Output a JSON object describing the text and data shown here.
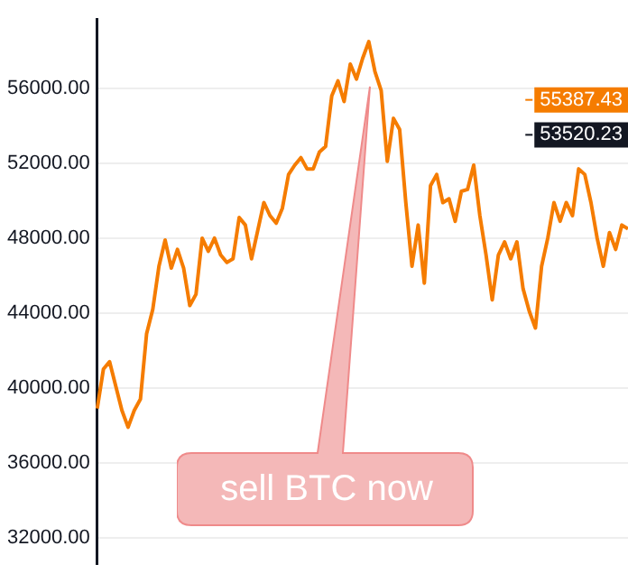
{
  "chart_data": {
    "type": "line",
    "categories": [
      null,
      null,
      null,
      null,
      null,
      null,
      null,
      null,
      null,
      null,
      null,
      null,
      null,
      null,
      null,
      null,
      null,
      null,
      null,
      null,
      null,
      null,
      null,
      null,
      null,
      null,
      null,
      null,
      null,
      null,
      null,
      null,
      null,
      null,
      null,
      null,
      null,
      null,
      null,
      null,
      null,
      null,
      null,
      null,
      null,
      null,
      null,
      null,
      null,
      null,
      null,
      null,
      null,
      null,
      null,
      null,
      null,
      null,
      null,
      null,
      null,
      null,
      null,
      null,
      null,
      null,
      null,
      null,
      null,
      null,
      null,
      null,
      null,
      null,
      null,
      null,
      null,
      null,
      null,
      null,
      null,
      null,
      null,
      null,
      null,
      null,
      null
    ],
    "series": [
      {
        "color": "#f57c00",
        "values": [
          38900,
          41000,
          41400,
          40100,
          38800,
          37900,
          38800,
          39400,
          42900,
          44200,
          46500,
          47900,
          46400,
          47400,
          46400,
          44400,
          45000,
          48000,
          47300,
          48000,
          47100,
          46700,
          46900,
          49100,
          48700,
          46900,
          48400,
          49900,
          49200,
          48800,
          49600,
          51400,
          51900,
          52300,
          51700,
          51700,
          52600,
          52900,
          55600,
          56400,
          55300,
          57300,
          56500,
          57600,
          58500,
          56900,
          55900,
          52100,
          54400,
          53800,
          49900,
          46500,
          48700,
          45600,
          50800,
          51400,
          49900,
          50100,
          48900,
          50500,
          50600,
          51900,
          49200,
          47100,
          44700,
          47100,
          47800,
          46900,
          47800,
          45300,
          44100,
          43200,
          46500,
          48000,
          49900,
          48900,
          49900,
          49200,
          51700,
          51400,
          49900,
          48000,
          46500,
          48300,
          47400,
          48700,
          48500
        ]
      }
    ],
    "ylim": [
      30600,
      59700
    ],
    "yticks": [
      {
        "value": 32000,
        "label": "32000.00"
      },
      {
        "value": 36000,
        "label": "36000.00"
      },
      {
        "value": 40000,
        "label": "40000.00"
      },
      {
        "value": 44000,
        "label": "44000.00"
      },
      {
        "value": 48000,
        "label": "48000.00"
      },
      {
        "value": 52000,
        "label": "52000.00"
      },
      {
        "value": 56000,
        "label": "56000.00"
      }
    ],
    "ref_lines": [
      {
        "axis": "y",
        "value": 55387.43,
        "label": "55387.43",
        "color": "#f57c00"
      },
      {
        "axis": "y",
        "value": 53520.23,
        "label": "53520.23",
        "color": "#131722"
      }
    ],
    "annotations": [
      "sell BTC now"
    ],
    "grid": "y",
    "legend": false,
    "marker": "none",
    "line_style": "solid",
    "tick_labels": "y"
  }
}
